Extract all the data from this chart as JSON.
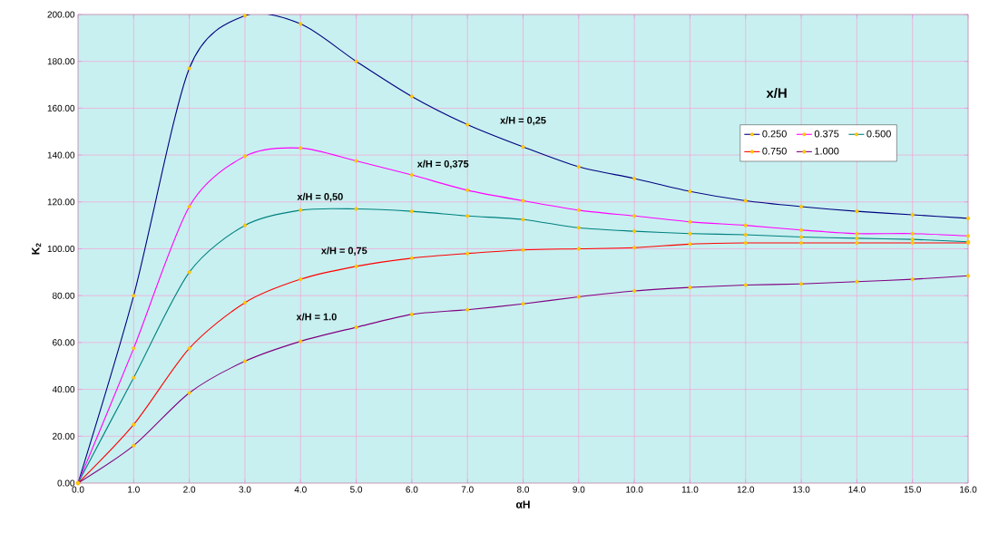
{
  "chart_data": {
    "type": "line",
    "xlabel": "αH",
    "ylabel": "K$_{2}$",
    "legend_title": "x/H",
    "x": [
      0,
      1,
      2,
      3,
      4,
      5,
      6,
      7,
      8,
      9,
      10,
      11,
      12,
      13,
      14,
      15,
      16
    ],
    "series": [
      {
        "name": "0.250",
        "color": "#000080",
        "values": [
          0,
          80,
          177,
          199.5,
          196,
          180,
          165,
          153,
          143.5,
          135,
          130,
          124.5,
          120.5,
          118,
          116,
          114.5,
          113
        ]
      },
      {
        "name": "0.375",
        "color": "#ff00ff",
        "values": [
          0,
          57.5,
          118,
          139.5,
          143,
          137.5,
          131.5,
          125,
          120.5,
          116.5,
          114,
          111.5,
          110,
          108,
          106.5,
          106.5,
          105.5
        ]
      },
      {
        "name": "0.500",
        "color": "#008080",
        "values": [
          0,
          45,
          90,
          110,
          116.5,
          117,
          116,
          114,
          112.5,
          109,
          107.5,
          106.5,
          106,
          105,
          104.5,
          104,
          103
        ]
      },
      {
        "name": "0.750",
        "color": "#ff0000",
        "values": [
          0,
          25,
          57.5,
          77,
          87,
          92.5,
          96,
          98,
          99.5,
          100,
          100.5,
          102,
          102.5,
          102.5,
          102.5,
          102.5,
          102.5
        ]
      },
      {
        "name": "1.000",
        "color": "#800080",
        "values": [
          0,
          16,
          38.5,
          52,
          60.5,
          66.5,
          72,
          74,
          76.5,
          79.5,
          82,
          83.5,
          84.5,
          85,
          86,
          87,
          88.5
        ]
      }
    ],
    "xlim": [
      0,
      16
    ],
    "xticks": [
      {
        "value": 0,
        "label": "0.0"
      },
      {
        "value": 1,
        "label": "1.0"
      },
      {
        "value": 2,
        "label": "2.0"
      },
      {
        "value": 3,
        "label": "3.0"
      },
      {
        "value": 4,
        "label": "4.0"
      },
      {
        "value": 5,
        "label": "5.0"
      },
      {
        "value": 6,
        "label": "6.0"
      },
      {
        "value": 7,
        "label": "7.0"
      },
      {
        "value": 8,
        "label": "8.0"
      },
      {
        "value": 9,
        "label": "9.0"
      },
      {
        "value": 10,
        "label": "10.0"
      },
      {
        "value": 11,
        "label": "11.0"
      },
      {
        "value": 12,
        "label": "12.0"
      },
      {
        "value": 13,
        "label": "13.0"
      },
      {
        "value": 14,
        "label": "14.0"
      },
      {
        "value": 15,
        "label": "15.0"
      },
      {
        "value": 16,
        "label": "16.0"
      }
    ],
    "ylim": [
      0,
      200
    ],
    "yticks": [
      {
        "value": 0,
        "label": "0.00"
      },
      {
        "value": 20,
        "label": "20.00"
      },
      {
        "value": 40,
        "label": "40.00"
      },
      {
        "value": 60,
        "label": "60.00"
      },
      {
        "value": 80,
        "label": "80.00"
      },
      {
        "value": 100,
        "label": "100.00"
      },
      {
        "value": 120,
        "label": "120.00"
      },
      {
        "value": 140,
        "label": "140.00"
      },
      {
        "value": 160,
        "label": "160.00"
      },
      {
        "value": 180,
        "label": "180.00"
      },
      {
        "value": 200,
        "label": "200.00"
      }
    ],
    "annotations": [
      "x/H = 0,25",
      "x/H = 0,375",
      "x/H = 0,50",
      "x/H = 0,75",
      "x/H = 1.0"
    ],
    "grid": true,
    "legend": "top right",
    "marker": "circle",
    "line_style": "solid"
  }
}
